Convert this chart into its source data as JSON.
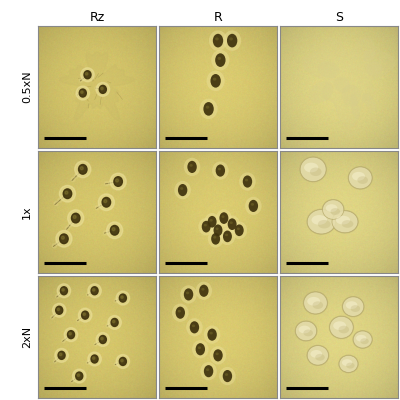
{
  "col_labels": [
    "Rz",
    "R",
    "S"
  ],
  "row_labels": [
    "0.5xN",
    "1x",
    "2xN"
  ],
  "bg_color_warm": [
    0.85,
    0.78,
    0.42
  ],
  "bg_color_cool": [
    0.88,
    0.84,
    0.5
  ],
  "label_fontsize": 9,
  "row_label_fontsize": 8,
  "fig_bg": "#ffffff",
  "scale_bar_color": "#000000",
  "colony_dark": [
    0.25,
    0.2,
    0.05
  ],
  "colony_halo": [
    0.92,
    0.88,
    0.6
  ],
  "colony_S_face": [
    0.9,
    0.87,
    0.68
  ],
  "colony_S_edge": [
    0.7,
    0.65,
    0.4
  ],
  "outer_border_color": "#888888",
  "white_separator": "#ffffff"
}
